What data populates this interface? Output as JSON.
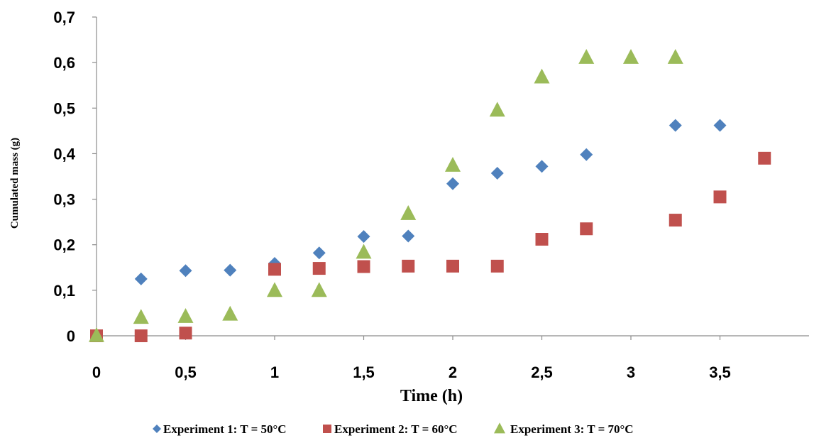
{
  "chart_data": {
    "type": "scatter",
    "xlabel": "Time (h)",
    "ylabel": "Cumulated mass (g)",
    "xlim": [
      0,
      4
    ],
    "ylim": [
      0,
      0.7
    ],
    "x_ticks": [
      {
        "value": 0,
        "label": "0"
      },
      {
        "value": 0.5,
        "label": "0,5"
      },
      {
        "value": 1,
        "label": "1"
      },
      {
        "value": 1.5,
        "label": "1,5"
      },
      {
        "value": 2,
        "label": "2"
      },
      {
        "value": 2.5,
        "label": "2,5"
      },
      {
        "value": 3,
        "label": "3"
      },
      {
        "value": 3.5,
        "label": "3,5"
      }
    ],
    "y_ticks": [
      {
        "value": 0,
        "label": "0"
      },
      {
        "value": 0.1,
        "label": "0,1"
      },
      {
        "value": 0.2,
        "label": "0,2"
      },
      {
        "value": 0.3,
        "label": "0,3"
      },
      {
        "value": 0.4,
        "label": "0,4"
      },
      {
        "value": 0.5,
        "label": "0,5"
      },
      {
        "value": 0.6,
        "label": "0,6"
      },
      {
        "value": 0.7,
        "label": "0,7"
      }
    ],
    "grid": false,
    "legend_position": "bottom",
    "series": [
      {
        "name": "Experiment 1: T = 50°C",
        "marker": "diamond",
        "color": "#4F81BD",
        "points": [
          [
            0,
            0
          ],
          [
            0.25,
            0.125
          ],
          [
            0.5,
            0.143
          ],
          [
            0.75,
            0.144
          ],
          [
            1,
            0.159
          ],
          [
            1.25,
            0.182
          ],
          [
            1.5,
            0.218
          ],
          [
            1.75,
            0.219
          ],
          [
            2,
            0.334
          ],
          [
            2.25,
            0.357
          ],
          [
            2.5,
            0.372
          ],
          [
            2.75,
            0.398
          ],
          [
            3.25,
            0.462
          ],
          [
            3.5,
            0.462
          ]
        ]
      },
      {
        "name": "Experiment 2: T = 60°C",
        "marker": "square",
        "color": "#C0504D",
        "points": [
          [
            0,
            0
          ],
          [
            0.25,
            0
          ],
          [
            0.5,
            0.006
          ],
          [
            1,
            0.146
          ],
          [
            1.25,
            0.148
          ],
          [
            1.5,
            0.152
          ],
          [
            1.75,
            0.153
          ],
          [
            2,
            0.153
          ],
          [
            2.25,
            0.153
          ],
          [
            2.5,
            0.212
          ],
          [
            2.75,
            0.235
          ],
          [
            3.25,
            0.254
          ],
          [
            3.5,
            0.305
          ],
          [
            3.75,
            0.39
          ]
        ]
      },
      {
        "name": "Experiment 3: T = 70°C",
        "marker": "triangle",
        "color": "#9BBB59",
        "points": [
          [
            0,
            0
          ],
          [
            0.25,
            0.04
          ],
          [
            0.5,
            0.042
          ],
          [
            0.75,
            0.047
          ],
          [
            1,
            0.099
          ],
          [
            1.25,
            0.099
          ],
          [
            1.5,
            0.183
          ],
          [
            1.75,
            0.268
          ],
          [
            2,
            0.374
          ],
          [
            2.25,
            0.495
          ],
          [
            2.5,
            0.568
          ],
          [
            2.75,
            0.611
          ],
          [
            3,
            0.611
          ],
          [
            3.25,
            0.611
          ]
        ]
      }
    ]
  }
}
